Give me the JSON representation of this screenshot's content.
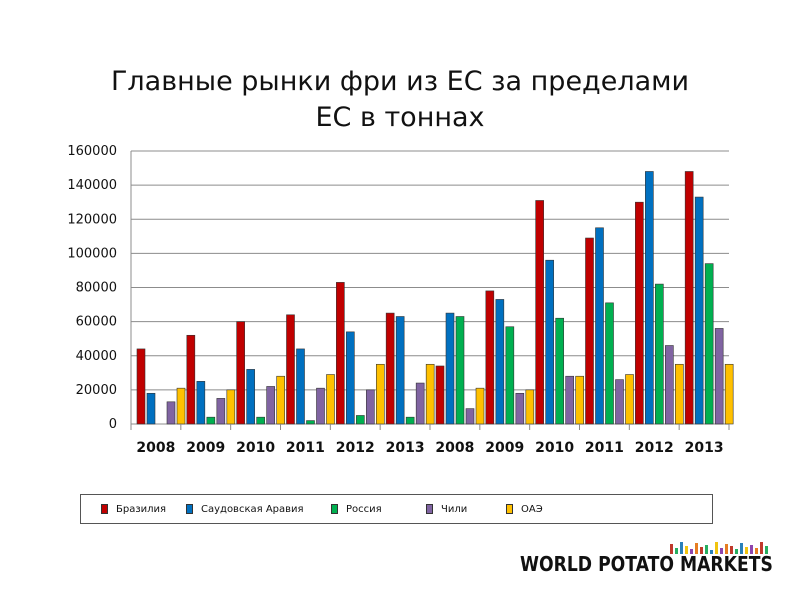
{
  "title_line1": "Главные рынки фри из ЕС за пределами",
  "title_line2": "ЕС в тоннах",
  "logo_text": "WORLD POTATO MARKETS",
  "logo_bar_colors": [
    "#c0392b",
    "#27ae60",
    "#2980b9",
    "#f1c40f",
    "#8e44ad",
    "#e67e22"
  ],
  "chart_data": {
    "type": "bar",
    "categories": [
      "2008",
      "2009",
      "2010",
      "2011",
      "2012",
      "2013",
      "2008",
      "2009",
      "2010",
      "2011",
      "2012",
      "2013"
    ],
    "ylim": [
      0,
      160000
    ],
    "yticks": [
      "0",
      "20000",
      "40000",
      "60000",
      "80000",
      "100000",
      "120000",
      "140000",
      "160000"
    ],
    "grid": true,
    "legend_position": "bottom",
    "series": [
      {
        "name": "Бразилия",
        "color": "#c00000",
        "values": [
          44000,
          52000,
          60000,
          64000,
          83000,
          65000,
          34000,
          78000,
          131000,
          109000,
          130000,
          148000
        ]
      },
      {
        "name": "Саудовская Аравия",
        "color": "#0070c0",
        "values": [
          18000,
          25000,
          32000,
          44000,
          54000,
          63000,
          65000,
          73000,
          96000,
          115000,
          148000,
          133000
        ]
      },
      {
        "name": "Россия",
        "color": "#00b050",
        "values": [
          0,
          4000,
          4000,
          2000,
          5000,
          4000,
          63000,
          57000,
          62000,
          71000,
          82000,
          94000
        ]
      },
      {
        "name": "Чили",
        "color": "#8064a2",
        "values": [
          13000,
          15000,
          22000,
          21000,
          20000,
          24000,
          9000,
          18000,
          28000,
          26000,
          46000,
          56000
        ]
      },
      {
        "name": "ОАЭ",
        "color": "#ffc000",
        "values": [
          21000,
          20000,
          28000,
          29000,
          35000,
          35000,
          21000,
          20000,
          28000,
          29000,
          35000,
          35000
        ]
      }
    ]
  }
}
